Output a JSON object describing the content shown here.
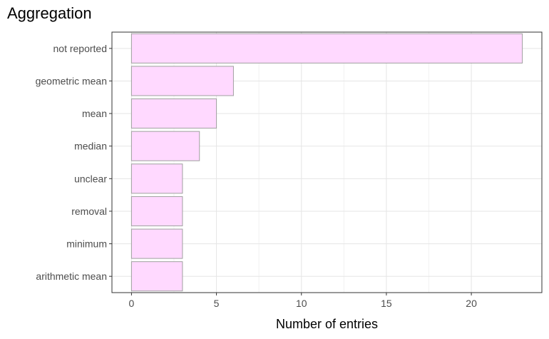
{
  "chart_data": {
    "type": "bar",
    "orientation": "horizontal",
    "title": "Aggregation",
    "xlabel": "Number of entries",
    "ylabel": "",
    "categories": [
      "not reported",
      "geometric mean",
      "mean",
      "median",
      "unclear",
      "removal",
      "minimum",
      "arithmetic mean"
    ],
    "values": [
      23,
      6,
      5,
      4,
      3,
      3,
      3,
      3
    ],
    "xlim": [
      -1.15,
      24.15
    ],
    "xticks": [
      0,
      5,
      10,
      15,
      20
    ],
    "grid": true,
    "legend": "none"
  },
  "colors": {
    "bar_fill": "#ffd9ff",
    "bar_stroke": "#a0a0a0",
    "grid_major": "#e5e5e5",
    "grid_minor": "#f2f2f2",
    "panel_border": "#333333"
  }
}
